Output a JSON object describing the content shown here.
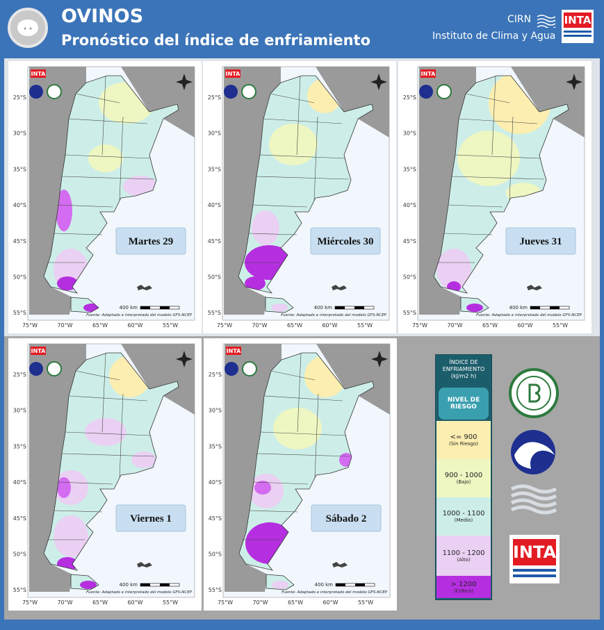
{
  "header": {
    "title": "OVINOS",
    "subtitle": "Pronóstico del índice de enfriamiento",
    "org_short": "CIRN",
    "org_name": "Instituto de Clima y Agua",
    "logo": "INTA"
  },
  "map_axes": {
    "lat_labels": [
      "25°S",
      "30°S",
      "35°S",
      "40°S",
      "45°S",
      "50°S",
      "55°S"
    ],
    "lon_labels": [
      "75°W",
      "70°W",
      "65°W",
      "60°W",
      "55°W"
    ],
    "scale": "400 km",
    "source": "Fuente: Adaptado e interpretado del modelo GFS-NCEP"
  },
  "panels": [
    {
      "day": "Martes 29"
    },
    {
      "day": "Miércoles 30"
    },
    {
      "day": "Jueves 31"
    },
    {
      "day": "Viernes 1"
    },
    {
      "day": "Sábado 2"
    }
  ],
  "legend": {
    "title": "ÍNDICE DE ENFRIAMIENTO",
    "unit": "(kJ/m2 h)",
    "risk_header": "NIVEL DE RIESGO",
    "levels": [
      {
        "range": "<= 900",
        "level": "(Sin Riesgo)"
      },
      {
        "range": "900 - 1000",
        "level": "(Bajo)"
      },
      {
        "range": "1000 - 1100",
        "level": "(Medio)"
      },
      {
        "range": "1100 - 1200",
        "level": "(Alto)"
      },
      {
        "range": "> 1200",
        "level": "(Crítico)"
      }
    ]
  }
}
